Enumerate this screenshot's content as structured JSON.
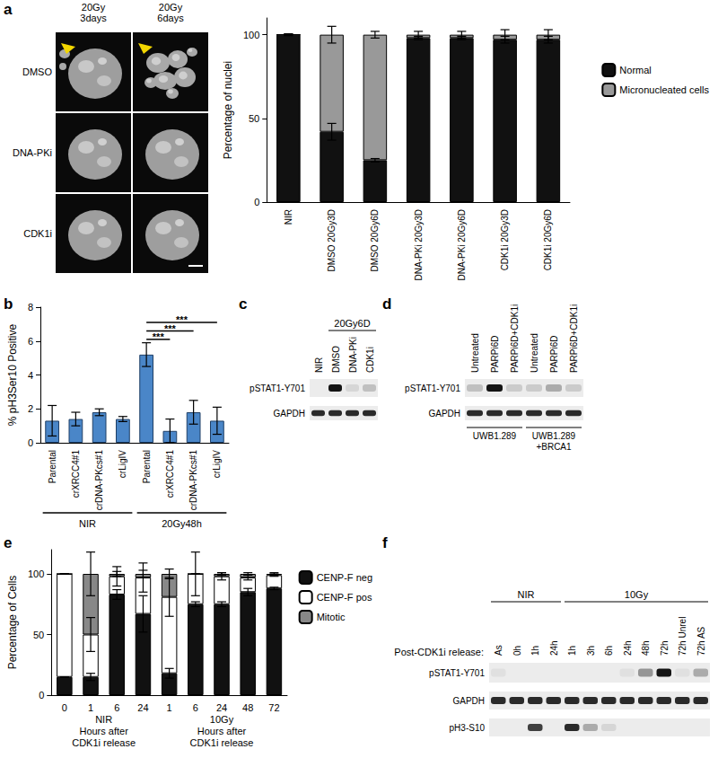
{
  "chart_data": [
    {
      "type": "bar",
      "stacked": true,
      "ylabel": "Percentage of nuclei",
      "categories": [
        "NIR",
        "DMSO 20Gy3D",
        "DMSO 20Gy6D",
        "DNA-PKi 20Gy3D",
        "DNA-PKi 20Gy6D",
        "CDK1i 20Gy3D",
        "CDK1i 20Gy6D"
      ],
      "series": [
        {
          "name": "Normal",
          "color": "#111111",
          "values": [
            100,
            42,
            25,
            98,
            98,
            97,
            97
          ],
          "errors": [
            0.5,
            5,
            1,
            1,
            1,
            2,
            2
          ]
        },
        {
          "name": "Micronucleated cells",
          "color": "#999999",
          "values": [
            0,
            58,
            75,
            2,
            2,
            3,
            3
          ],
          "errors": [
            0.5,
            5,
            2,
            2,
            2,
            3,
            3
          ]
        }
      ],
      "ylim": [
        0,
        110
      ],
      "yticks": [
        0,
        50,
        100
      ],
      "grid": false,
      "legend": "right"
    },
    {
      "type": "bar",
      "ylabel": "% pH3Ser10 Positive",
      "categories": [
        "Parental",
        "crXRCC4#1",
        "crDNA-PKcs#1",
        "crLigIV",
        "Parental",
        "crXRCC4#1",
        "crDNA-PKcs#1",
        "crLigIV"
      ],
      "values": [
        1.3,
        1.4,
        1.8,
        1.4,
        5.2,
        0.7,
        1.8,
        1.3
      ],
      "errors": [
        0.9,
        0.4,
        0.2,
        0.15,
        0.7,
        0.7,
        0.7,
        0.8
      ],
      "color": "#4a86c8",
      "ylim": [
        0,
        8
      ],
      "yticks": [
        0,
        2,
        4,
        6,
        8
      ],
      "grid": false,
      "group_labels": [
        {
          "label": "NIR",
          "from": 0,
          "to": 3
        },
        {
          "label": "20Gy48h",
          "from": 4,
          "to": 7
        }
      ],
      "annotations": [
        {
          "label": "***",
          "from": 4,
          "to": 5,
          "y": 6.1
        },
        {
          "label": "***",
          "from": 4,
          "to": 6,
          "y": 6.6
        },
        {
          "label": "***",
          "from": 4,
          "to": 7,
          "y": 7.1
        }
      ]
    },
    {
      "type": "bar",
      "stacked": true,
      "ylabel": "Percentage of Cells",
      "categories": [
        "0",
        "1",
        "6",
        "24",
        "1",
        "6",
        "24",
        "48",
        "72"
      ],
      "series": [
        {
          "name": "CENP-F neg",
          "color": "#111111",
          "values": [
            15,
            15,
            83,
            67,
            18,
            75,
            75,
            85,
            88
          ],
          "errors": [
            0,
            3,
            4,
            15,
            4,
            2,
            2,
            3,
            1
          ]
        },
        {
          "name": "CENP-F pos",
          "color": "#ffffff",
          "values": [
            85,
            35,
            15,
            30,
            63,
            25,
            23,
            12,
            11
          ],
          "errors": [
            0,
            14,
            8,
            12,
            16,
            18,
            3,
            2,
            1
          ]
        },
        {
          "name": "Mitotic",
          "color": "#888888",
          "values": [
            0,
            50,
            2,
            3,
            19,
            0,
            2,
            3,
            1
          ],
          "errors": [
            0,
            18,
            2,
            3,
            4,
            0,
            1,
            1,
            1
          ]
        }
      ],
      "ylim": [
        0,
        120
      ],
      "yticks": [
        0,
        50,
        100
      ],
      "grid": false,
      "legend": "right",
      "group_labels": [
        {
          "label": "NIR\nHours after\nCDK1i release",
          "from": 0,
          "to": 3
        },
        {
          "label": "10Gy\nHours after\nCDK1i release",
          "from": 4,
          "to": 8
        }
      ]
    }
  ],
  "figure": {
    "panel_letters": [
      "a",
      "b",
      "c",
      "d",
      "e",
      "f"
    ],
    "micrographs": {
      "columns": [
        "20Gy\n3days",
        "20Gy\n6days"
      ],
      "rows": [
        "DMSO",
        "DNA-PKi",
        "CDK1i"
      ]
    },
    "blots": [
      {
        "lanes": [
          "NIR",
          "DMSO",
          "DNA-PKi",
          "CDK1i"
        ],
        "top_groups": [
          {
            "label": "20Gy6D",
            "from": 1,
            "to": 3
          }
        ],
        "rows": [
          {
            "label": "pSTAT1-Y701",
            "bands": [
              0,
              1,
              0.1,
              0.2
            ]
          },
          {
            "label": "GAPDH",
            "bands": [
              0.9,
              0.9,
              0.9,
              0.9
            ]
          }
        ]
      },
      {
        "lanes": [
          "Untreated",
          "PARPi6D",
          "PARPi6D+CDK1i",
          "Untreated",
          "PARPi6D",
          "PARPi6D+CDK1i"
        ],
        "bottom_groups": [
          {
            "label": "UWB1.289",
            "from": 0,
            "to": 2
          },
          {
            "label": "UWB1.289\n+BRCA1",
            "from": 3,
            "to": 5
          }
        ],
        "rows": [
          {
            "label": "pSTAT1-Y701",
            "bands": [
              0.2,
              1,
              0.15,
              0.15,
              0.3,
              0.15
            ]
          },
          {
            "label": "GAPDH",
            "bands": [
              0.9,
              0.9,
              0.9,
              0.9,
              0.9,
              0.9
            ]
          }
        ]
      },
      {
        "lane_title": "Post-CDK1i release:",
        "lanes": [
          "As",
          "0h",
          "1h",
          "24h",
          "1h",
          "3h",
          "6h",
          "24h",
          "48h",
          "72h",
          "72h Unrel",
          "72h AS"
        ],
        "top_groups": [
          {
            "label": "NIR",
            "from": 0,
            "to": 3
          },
          {
            "label": "10Gy",
            "from": 4,
            "to": 11
          }
        ],
        "rows": [
          {
            "label": "pSTAT1-Y701",
            "bands": [
              0.05,
              0,
              0,
              0,
              0,
              0,
              0,
              0.05,
              0.4,
              1,
              0.05,
              0.3
            ]
          },
          {
            "label": "GAPDH",
            "bands": [
              0.9,
              0.9,
              0.9,
              0.9,
              0.9,
              0.9,
              0.9,
              0.9,
              0.9,
              0.9,
              0.9,
              0.9
            ]
          },
          {
            "label": "pH3-S10",
            "bands": [
              0,
              0,
              0.8,
              0,
              0.9,
              0.3,
              0.1,
              0,
              0,
              0,
              0,
              0
            ]
          }
        ]
      }
    ]
  }
}
